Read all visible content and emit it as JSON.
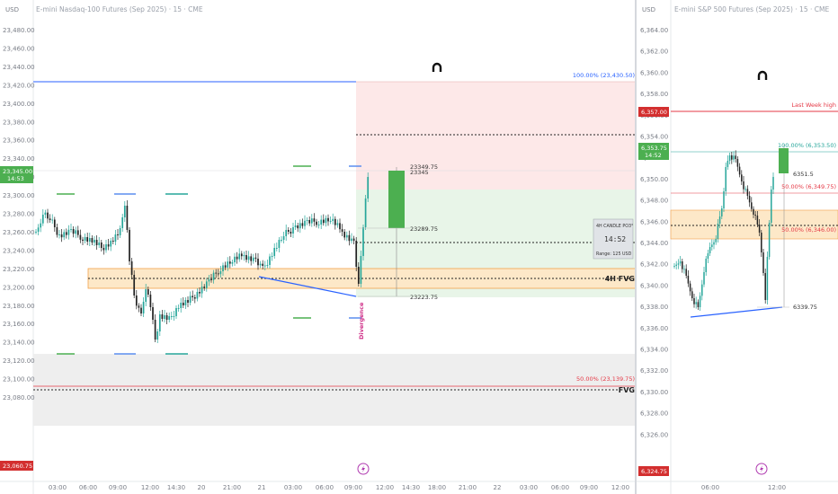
{
  "left": {
    "currency": "USD",
    "title": "E-mini Nasdaq-100 Futures (Sep 2025) · 15 · CME",
    "price_ticks": [
      "23,480.00",
      "23,460.00",
      "23,440.00",
      "23,420.00",
      "23,400.00",
      "23,380.00",
      "23,360.00",
      "23,340.00",
      "23,320.00",
      "23,300.00",
      "23,280.00",
      "23,260.00",
      "23,240.00",
      "23,220.00",
      "23,200.00",
      "23,180.00",
      "23,160.00",
      "23,140.00",
      "23,120.00",
      "23,100.00",
      "23,080.00"
    ],
    "time_ticks": [
      "03:00",
      "06:00",
      "09:00",
      "12:00",
      "14:30",
      "20",
      "21:00",
      "21",
      "03:00",
      "06:00",
      "09:00",
      "12:00",
      "14:30",
      "18:00",
      "21:00",
      "22",
      "03:00",
      "06:00",
      "09:00",
      "12:00"
    ],
    "last_price": "23,345.00",
    "countdown": "14:53",
    "low_badge": "23,060.75",
    "fib_top": "100.00% (23,430.50)",
    "fib_mid": "50.00% (23,139.75)",
    "fvg_4h": "4H FVG",
    "fvg": "FVG",
    "candle_high": "23349.75",
    "candle_high2": "23345",
    "candle_mid": "23289.75",
    "candle_low": "23223.75",
    "divergence": "Divergence",
    "info_title": "4H CANDLE PO3°",
    "info_countdown": "14:52",
    "info_range": "Range: 125 USD"
  },
  "right": {
    "currency": "USD",
    "title": "E-mini S&P 500 Futures (Sep 2025) · 15 · CME",
    "price_ticks": [
      "6,364.00",
      "6,362.00",
      "6,360.00",
      "6,358.00",
      "6,356.00",
      "6,354.00",
      "6,352.00",
      "6,350.00",
      "6,348.00",
      "6,346.00",
      "6,344.00",
      "6,342.00",
      "6,340.00",
      "6,338.00",
      "6,336.00",
      "6,334.00",
      "6,332.00",
      "6,330.00",
      "6,328.00",
      "6,326.00"
    ],
    "time_ticks": [
      "06:00",
      "12:00"
    ],
    "last_week_high": "Last Week high",
    "lwh_badge": "6,357.00",
    "last_price": "6,353.75",
    "countdown": "14:52",
    "low_badge": "6,324.75",
    "fib_top": "100.00% (6,353.50)",
    "fib_mid": "50.00% (6,349.75)",
    "fib_low": "50.00% (6,346.00)",
    "candle_high": "6351.5",
    "candle_low": "6339.75"
  },
  "colors": {
    "bull": "#26a69a",
    "bear": "#222222",
    "green_bar": "#4caf50",
    "red_line": "#e53946",
    "blue_line": "#2962ff",
    "fvg_fill": "#fde8c8",
    "fvg_border": "#f2a14a",
    "divergence": "#d0338a",
    "badge_green": "#4caf50",
    "badge_red": "#d32f2f"
  }
}
